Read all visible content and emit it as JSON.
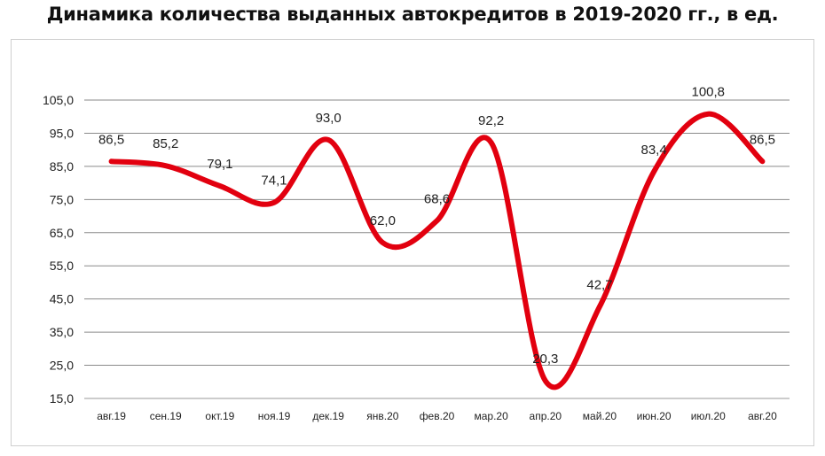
{
  "chart_data": {
    "type": "line",
    "title": "Динамика количества выданных автокредитов в 2019-2020 гг., в ед.",
    "categories": [
      "авг.19",
      "сен.19",
      "окт.19",
      "ноя.19",
      "дек.19",
      "янв.20",
      "фев.20",
      "мар.20",
      "апр.20",
      "май.20",
      "июн.20",
      "июл.20",
      "авг.20"
    ],
    "series": [
      {
        "values": [
          86.5,
          85.2,
          79.1,
          74.1,
          93.0,
          62.0,
          68.6,
          92.2,
          20.3,
          42.7,
          83.4,
          100.8,
          86.5
        ],
        "labels": [
          "86,5",
          "85,2",
          "79,1",
          "74,1",
          "93,0",
          "62,0",
          "68,6",
          "92,2",
          "20,3",
          "42,7",
          "83,4",
          "100,8",
          "86,5"
        ],
        "color": "#e2000f",
        "smooth": true
      }
    ],
    "ylim": [
      15,
      105
    ],
    "yticks": [
      15,
      25,
      35,
      45,
      55,
      65,
      75,
      85,
      95,
      105
    ],
    "ytick_labels": [
      "15,0",
      "25,0",
      "35,0",
      "45,0",
      "55,0",
      "65,0",
      "75,0",
      "85,0",
      "95,0",
      "105,0"
    ],
    "xlabel": "",
    "ylabel": "",
    "grid": true,
    "legend": "none"
  }
}
